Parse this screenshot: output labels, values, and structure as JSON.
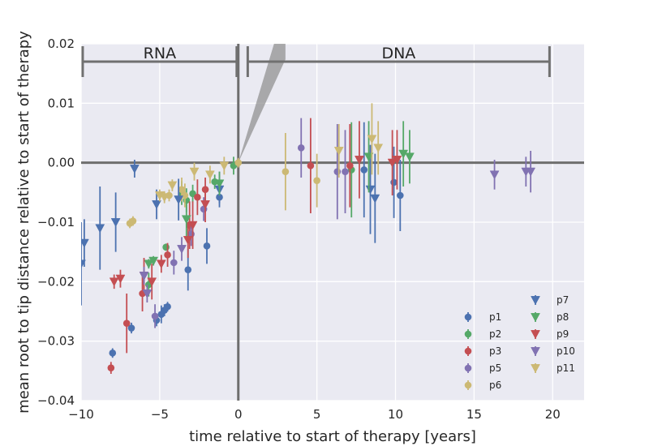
{
  "chart_data": {
    "type": "scatter",
    "title": "",
    "xlabel": "time relative to start of therapy [years]",
    "ylabel": "mean root to tip distance relative to start of therapy",
    "xlim": [
      -10,
      22
    ],
    "ylim": [
      -0.04,
      0.02
    ],
    "xticks": [
      -10,
      -5,
      0,
      5,
      10,
      15,
      20
    ],
    "xtick_labels": [
      "−10",
      "−5",
      "0",
      "5",
      "10",
      "15",
      "20"
    ],
    "yticks": [
      -0.04,
      -0.03,
      -0.02,
      -0.01,
      0.0,
      0.01,
      0.02
    ],
    "ytick_labels": [
      "−0.04",
      "−0.03",
      "−0.02",
      "−0.01",
      "0.00",
      "0.01",
      "0.02"
    ],
    "grid": true,
    "legend_position": "bottom-right",
    "annotations": [
      {
        "text": "RNA",
        "range_x": [
          -9.9,
          -0.1
        ],
        "y": 0.017
      },
      {
        "text": "DNA",
        "range_x": [
          0.6,
          19.8
        ],
        "y": 0.017
      }
    ],
    "reference_lines": {
      "horizontal_y": 0.0,
      "vertical_x": 0.0
    },
    "wedge": {
      "x0": 0.0,
      "y0": 0.0,
      "slopes": [
        0.0058,
        0.0088
      ]
    },
    "series": [
      {
        "name": "p1",
        "marker": "circle",
        "color": "#4c72b0",
        "points": [
          {
            "x": -8.0,
            "y": -0.032,
            "err": 0.0008
          },
          {
            "x": -6.8,
            "y": -0.0278,
            "err": 0.0009
          },
          {
            "x": -5.2,
            "y": -0.0265,
            "err": 0.001
          },
          {
            "x": -4.9,
            "y": -0.0255,
            "err": 0.0015
          },
          {
            "x": -4.7,
            "y": -0.0248,
            "err": 0.001
          },
          {
            "x": -4.5,
            "y": -0.0242,
            "err": 0.0008
          },
          {
            "x": -3.2,
            "y": -0.018,
            "err": 0.0035
          },
          {
            "x": -2.0,
            "y": -0.014,
            "err": 0.003
          },
          {
            "x": -1.2,
            "y": -0.0058,
            "err": 0.001
          },
          {
            "x": 8.0,
            "y": -0.0012,
            "err": 0.008
          },
          {
            "x": 9.9,
            "y": -0.0033,
            "err": 0.006
          },
          {
            "x": 10.3,
            "y": -0.0055,
            "err": 0.006
          }
        ]
      },
      {
        "name": "p2",
        "marker": "circle",
        "color": "#55a868",
        "points": [
          {
            "x": -5.7,
            "y": -0.0205,
            "err": 0.002
          },
          {
            "x": -4.6,
            "y": -0.0142,
            "err": 0.0006
          },
          {
            "x": -3.6,
            "y": -0.0051,
            "err": 0.002
          },
          {
            "x": -3.3,
            "y": -0.0063,
            "err": 0.002
          },
          {
            "x": -2.9,
            "y": -0.0052,
            "err": 0.0015
          },
          {
            "x": -1.5,
            "y": -0.0032,
            "err": 0.0012
          },
          {
            "x": -0.3,
            "y": -0.0005,
            "err": 0.0015
          },
          {
            "x": 7.2,
            "y": -0.0012,
            "err": 0.008
          }
        ]
      },
      {
        "name": "p3",
        "marker": "circle",
        "color": "#c44e52",
        "points": [
          {
            "x": -8.1,
            "y": -0.0345,
            "err": 0.001
          },
          {
            "x": -7.1,
            "y": -0.027,
            "err": 0.005
          },
          {
            "x": -6.1,
            "y": -0.022,
            "err": 0.003
          },
          {
            "x": -4.5,
            "y": -0.0155,
            "err": 0.002
          },
          {
            "x": -3.1,
            "y": -0.0105,
            "err": 0.004
          },
          {
            "x": -2.6,
            "y": -0.0058,
            "err": 0.003
          },
          {
            "x": -2.1,
            "y": -0.0045,
            "err": 0.002
          },
          {
            "x": 4.6,
            "y": -0.0005,
            "err": 0.008
          },
          {
            "x": 7.1,
            "y": -0.0005,
            "err": 0.007
          }
        ]
      },
      {
        "name": "p5",
        "marker": "circle",
        "color": "#8172b2",
        "points": [
          {
            "x": -5.3,
            "y": -0.0258,
            "err": 0.002
          },
          {
            "x": -4.1,
            "y": -0.0168,
            "err": 0.002
          },
          {
            "x": -3.0,
            "y": -0.012,
            "err": 0.002
          },
          {
            "x": -2.2,
            "y": -0.0078,
            "err": 0.002
          },
          {
            "x": 4.0,
            "y": 0.0025,
            "err": 0.005
          },
          {
            "x": 6.3,
            "y": -0.0015,
            "err": 0.008
          },
          {
            "x": 6.8,
            "y": -0.0015,
            "err": 0.007
          }
        ]
      },
      {
        "name": "p6",
        "marker": "circle",
        "color": "#ccb974",
        "points": [
          {
            "x": -6.7,
            "y": -0.0098,
            "err": 0.0008
          },
          {
            "x": -6.9,
            "y": -0.0102,
            "err": 0.0008
          },
          {
            "x": -4.4,
            "y": -0.0055,
            "err": 0.001
          },
          {
            "x": -3.4,
            "y": -0.0055,
            "err": 0.002
          },
          {
            "x": -3.6,
            "y": -0.0045,
            "err": 0.002
          },
          {
            "x": 3.0,
            "y": -0.0015,
            "err": 0.0065
          },
          {
            "x": 5.0,
            "y": -0.003,
            "err": 0.0045
          },
          {
            "x": 0.0,
            "y": 0.0,
            "err": 0.0008
          }
        ]
      },
      {
        "name": "p7",
        "marker": "triangle-down",
        "color": "#4c72b0",
        "points": [
          {
            "x": -10.0,
            "y": -0.017,
            "err": 0.007
          },
          {
            "x": -9.8,
            "y": -0.0135,
            "err": 0.004
          },
          {
            "x": -8.8,
            "y": -0.011,
            "err": 0.007
          },
          {
            "x": -7.8,
            "y": -0.01,
            "err": 0.005
          },
          {
            "x": -6.6,
            "y": -0.001,
            "err": 0.0015
          },
          {
            "x": -5.2,
            "y": -0.007,
            "err": 0.0025
          },
          {
            "x": -3.8,
            "y": -0.0062,
            "err": 0.0035
          },
          {
            "x": -1.2,
            "y": -0.0045,
            "err": 0.003
          },
          {
            "x": 8.4,
            "y": -0.0045,
            "err": 0.0075
          },
          {
            "x": 8.7,
            "y": -0.006,
            "err": 0.0075
          }
        ]
      },
      {
        "name": "p8",
        "marker": "triangle-down",
        "color": "#55a868",
        "points": [
          {
            "x": -5.7,
            "y": -0.017,
            "err": 0.0008
          },
          {
            "x": -5.4,
            "y": -0.0165,
            "err": 0.0008
          },
          {
            "x": -3.3,
            "y": -0.0095,
            "err": 0.003
          },
          {
            "x": -1.2,
            "y": -0.0035,
            "err": 0.002
          },
          {
            "x": 8.3,
            "y": 0.001,
            "err": 0.006
          },
          {
            "x": 10.5,
            "y": 0.0015,
            "err": 0.0055
          },
          {
            "x": 10.9,
            "y": 0.001,
            "err": 0.0045
          }
        ]
      },
      {
        "name": "p9",
        "marker": "triangle-down",
        "color": "#c44e52",
        "points": [
          {
            "x": -7.9,
            "y": -0.02,
            "err": 0.0012
          },
          {
            "x": -7.5,
            "y": -0.0195,
            "err": 0.0015
          },
          {
            "x": -6.0,
            "y": -0.019,
            "err": 0.003
          },
          {
            "x": -5.5,
            "y": -0.02,
            "err": 0.003
          },
          {
            "x": -4.9,
            "y": -0.017,
            "err": 0.0015
          },
          {
            "x": -3.2,
            "y": -0.013,
            "err": 0.003
          },
          {
            "x": -2.9,
            "y": -0.0105,
            "err": 0.004
          },
          {
            "x": -2.1,
            "y": -0.007,
            "err": 0.003
          },
          {
            "x": 7.7,
            "y": 0.0005,
            "err": 0.0065
          },
          {
            "x": 9.8,
            "y": 0.0,
            "err": 0.0055
          },
          {
            "x": 10.1,
            "y": 0.0005,
            "err": 0.005
          }
        ]
      },
      {
        "name": "p10",
        "marker": "triangle-down",
        "color": "#8172b2",
        "points": [
          {
            "x": -6.0,
            "y": -0.019,
            "err": 0.0015
          },
          {
            "x": -5.8,
            "y": -0.022,
            "err": 0.0015
          },
          {
            "x": -3.6,
            "y": -0.0145,
            "err": 0.002
          },
          {
            "x": 16.3,
            "y": -0.002,
            "err": 0.0025
          },
          {
            "x": 18.3,
            "y": -0.0015,
            "err": 0.0025
          },
          {
            "x": 18.6,
            "y": -0.0015,
            "err": 0.0035
          }
        ]
      },
      {
        "name": "p11",
        "marker": "triangle-down",
        "color": "#ccb974",
        "points": [
          {
            "x": -5.0,
            "y": -0.0055,
            "err": 0.001
          },
          {
            "x": -4.7,
            "y": -0.0058,
            "err": 0.001
          },
          {
            "x": -4.2,
            "y": -0.0038,
            "err": 0.001
          },
          {
            "x": -2.8,
            "y": -0.0015,
            "err": 0.0015
          },
          {
            "x": -1.8,
            "y": -0.002,
            "err": 0.0015
          },
          {
            "x": -0.9,
            "y": -0.0005,
            "err": 0.0015
          },
          {
            "x": 6.4,
            "y": 0.002,
            "err": 0.0045
          },
          {
            "x": 8.5,
            "y": 0.004,
            "err": 0.006
          },
          {
            "x": 8.9,
            "y": 0.0025,
            "err": 0.0045
          }
        ]
      }
    ]
  }
}
